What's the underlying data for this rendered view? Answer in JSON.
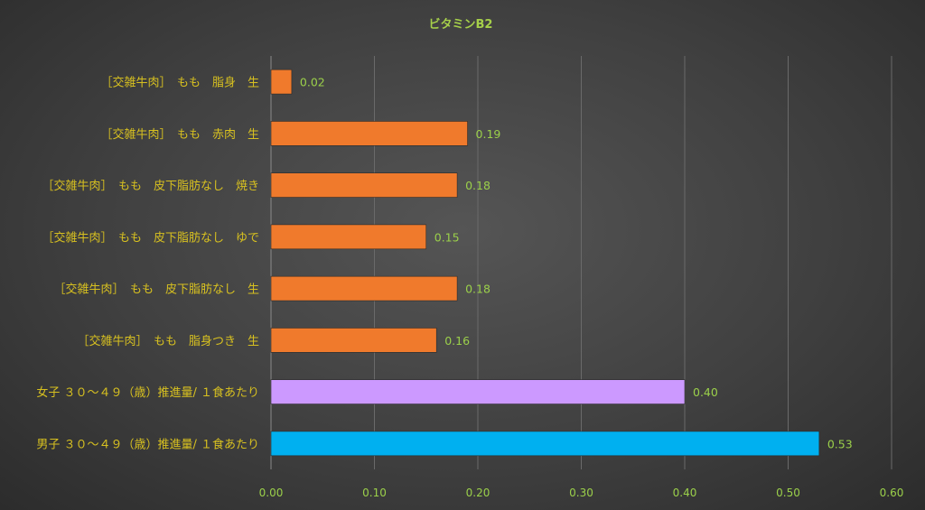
{
  "chart_data": {
    "type": "bar",
    "orientation": "horizontal",
    "title": "ビタミンB2",
    "xlim": [
      0,
      0.6
    ],
    "ticks": [
      "0.00",
      "0.10",
      "0.20",
      "0.30",
      "0.40",
      "0.50",
      "0.60"
    ],
    "tick_values": [
      0,
      0.1,
      0.2,
      0.3,
      0.4,
      0.5,
      0.6
    ],
    "grid": true,
    "categories": [
      "［交雑牛肉］　もも　脂身　生",
      "［交雑牛肉］　もも　赤肉　生",
      "［交雑牛肉］　もも　皮下脂肪なし　焼き",
      "［交雑牛肉］　もも　皮下脂肪なし　ゆで",
      "［交雑牛肉］　もも　皮下脂肪なし　生",
      "［交雑牛肉］　もも　脂身つき　生",
      "女子 ３０～４９（歳）推進量/ １食あたり",
      "男子 ３０～４９（歳）推進量/ １食あたり"
    ],
    "values": [
      0.02,
      0.19,
      0.18,
      0.15,
      0.18,
      0.16,
      0.4,
      0.53
    ],
    "value_labels": [
      "0.02",
      "0.19",
      "0.18",
      "0.15",
      "0.18",
      "0.16",
      "0.40",
      "0.53"
    ],
    "bar_colors": [
      "#f07a2c",
      "#f07a2c",
      "#f07a2c",
      "#f07a2c",
      "#f07a2c",
      "#f07a2c",
      "#cc99ff",
      "#00b0f0"
    ]
  }
}
